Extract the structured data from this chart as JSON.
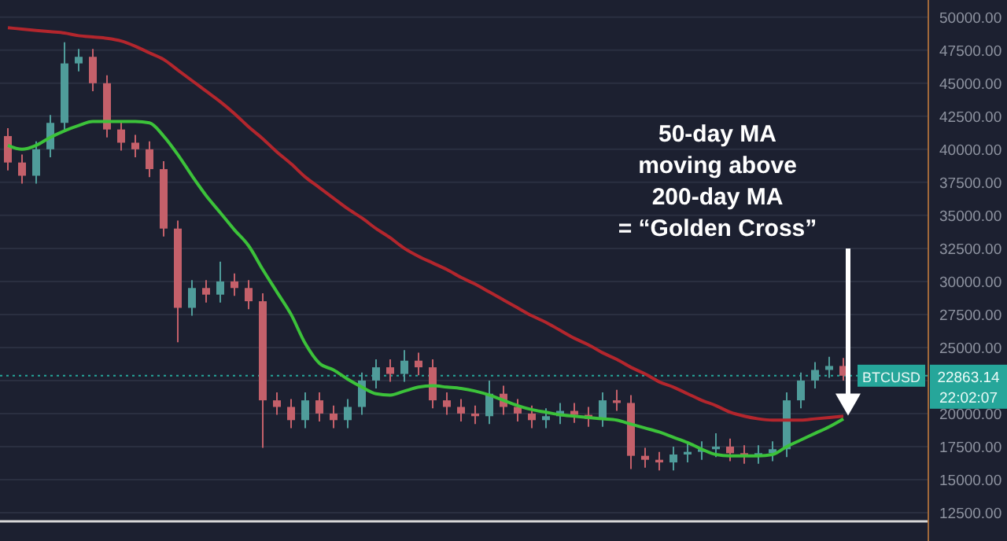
{
  "chart_data": {
    "type": "candlestick",
    "categories": [
      null,
      null,
      null,
      null,
      null,
      null,
      null,
      null,
      null,
      null,
      null,
      null,
      null,
      null,
      null,
      null,
      null,
      null,
      null,
      null,
      null,
      null,
      null,
      null,
      null,
      null,
      null,
      null,
      null,
      null,
      null,
      null,
      null,
      null,
      null,
      null,
      null,
      null,
      null,
      null,
      null,
      null,
      null,
      null,
      null,
      null,
      null,
      null,
      null,
      null,
      null,
      null,
      null,
      null,
      null,
      null,
      null,
      null,
      null,
      null
    ],
    "ohlc": [
      [
        41000,
        41600,
        38400,
        39000
      ],
      [
        39000,
        39600,
        37400,
        38000
      ],
      [
        38000,
        40600,
        37400,
        40000
      ],
      [
        40000,
        42600,
        39400,
        42000
      ],
      [
        42000,
        48100,
        41400,
        46500
      ],
      [
        46500,
        47600,
        45900,
        47000
      ],
      [
        47000,
        47600,
        44400,
        45000
      ],
      [
        45000,
        45600,
        40900,
        41500
      ],
      [
        41500,
        42100,
        39900,
        40500
      ],
      [
        40500,
        41100,
        39400,
        40000
      ],
      [
        40000,
        40600,
        37900,
        38500
      ],
      [
        38500,
        39100,
        33400,
        34000
      ],
      [
        34000,
        34600,
        25400,
        28000
      ],
      [
        28000,
        30100,
        27400,
        29500
      ],
      [
        29500,
        30100,
        28400,
        29000
      ],
      [
        29000,
        31500,
        28400,
        30000
      ],
      [
        30000,
        30600,
        28900,
        29500
      ],
      [
        29500,
        30100,
        27900,
        28500
      ],
      [
        28500,
        29100,
        17400,
        21000
      ],
      [
        21000,
        21600,
        19900,
        20500
      ],
      [
        20500,
        21100,
        18900,
        19500
      ],
      [
        19500,
        21600,
        18900,
        21000
      ],
      [
        21000,
        21600,
        19400,
        20000
      ],
      [
        20000,
        20600,
        18900,
        19500
      ],
      [
        19500,
        21100,
        18900,
        20500
      ],
      [
        20500,
        23100,
        19900,
        22500
      ],
      [
        22500,
        24100,
        21900,
        23500
      ],
      [
        23500,
        24100,
        22400,
        23000
      ],
      [
        23000,
        24800,
        22400,
        24000
      ],
      [
        24000,
        24600,
        22900,
        23500
      ],
      [
        23500,
        24100,
        20400,
        21000
      ],
      [
        21000,
        21600,
        19900,
        20500
      ],
      [
        20500,
        21100,
        19400,
        20000
      ],
      [
        20000,
        20600,
        19200,
        19800
      ],
      [
        19800,
        22500,
        19200,
        21500
      ],
      [
        21500,
        22100,
        19900,
        20500
      ],
      [
        20500,
        21100,
        19400,
        20000
      ],
      [
        20000,
        20600,
        18900,
        19500
      ],
      [
        19500,
        20400,
        18900,
        19800
      ],
      [
        19800,
        20800,
        19200,
        20200
      ],
      [
        20200,
        20800,
        19300,
        19900
      ],
      [
        19900,
        20500,
        19000,
        19600
      ],
      [
        19600,
        21600,
        19000,
        21000
      ],
      [
        21000,
        21800,
        20200,
        20800
      ],
      [
        20800,
        21400,
        15800,
        16800
      ],
      [
        16800,
        17400,
        15900,
        16500
      ],
      [
        16500,
        17100,
        15700,
        16300
      ],
      [
        16300,
        17500,
        15700,
        16900
      ],
      [
        16900,
        17700,
        16300,
        17100
      ],
      [
        17100,
        17900,
        16500,
        17300
      ],
      [
        17300,
        18500,
        16700,
        17500
      ],
      [
        17500,
        18100,
        16400,
        17000
      ],
      [
        17000,
        17600,
        16200,
        16800
      ],
      [
        16800,
        17600,
        16200,
        17000
      ],
      [
        17000,
        17900,
        16400,
        17300
      ],
      [
        17300,
        21600,
        16700,
        21000
      ],
      [
        21000,
        23100,
        20400,
        22500
      ],
      [
        22500,
        23900,
        21900,
        23300
      ],
      [
        23300,
        24300,
        22700,
        23600
      ],
      [
        23600,
        24200,
        22500,
        22863.14
      ]
    ],
    "series": [
      {
        "type": "line",
        "color": "#b3262d",
        "values": [
          49200,
          49100,
          49000,
          48900,
          48800,
          48600,
          48500,
          48400,
          48200,
          47800,
          47300,
          46800,
          46000,
          45200,
          44400,
          43600,
          42700,
          41700,
          40800,
          39800,
          38900,
          37900,
          37100,
          36300,
          35500,
          34800,
          34000,
          33300,
          32500,
          31900,
          31400,
          30900,
          30300,
          29800,
          29200,
          28600,
          28000,
          27400,
          26900,
          26300,
          25700,
          25200,
          24600,
          24100,
          23500,
          23000,
          22400,
          22000,
          21500,
          21000,
          20600,
          20100,
          19800,
          19600,
          19500,
          19500,
          19500,
          19600,
          19700,
          19800
        ]
      },
      {
        "type": "line",
        "color": "#3cc23a",
        "values": [
          40300,
          40000,
          40300,
          40900,
          41400,
          41800,
          42100,
          42100,
          42100,
          42100,
          42000,
          41000,
          39600,
          38000,
          36500,
          35200,
          33900,
          32700,
          30900,
          29200,
          27500,
          25300,
          23800,
          23300,
          22600,
          22000,
          21500,
          21400,
          21700,
          22000,
          22100,
          22000,
          21900,
          21700,
          21400,
          21000,
          20600,
          20300,
          20100,
          19900,
          19800,
          19700,
          19600,
          19500,
          19200,
          18900,
          18600,
          18200,
          17800,
          17300,
          16900,
          16800,
          16800,
          16800,
          16900,
          17500,
          18000,
          18500,
          19000,
          19600
        ]
      }
    ],
    "ylim": [
      11900,
      51300
    ],
    "yticks": [
      {
        "value": 12500,
        "label": "12500.00"
      },
      {
        "value": 15000,
        "label": "15000.00"
      },
      {
        "value": 17500,
        "label": "17500.00"
      },
      {
        "value": 20000,
        "label": "20000.00"
      },
      {
        "value": 22500,
        "label": null
      },
      {
        "value": 25000,
        "label": "25000.00"
      },
      {
        "value": 27500,
        "label": "27500.00"
      },
      {
        "value": 30000,
        "label": "30000.00"
      },
      {
        "value": 32500,
        "label": "32500.00"
      },
      {
        "value": 35000,
        "label": "35000.00"
      },
      {
        "value": 37500,
        "label": "37500.00"
      },
      {
        "value": 40000,
        "label": "40000.00"
      },
      {
        "value": 42500,
        "label": "42500.00"
      },
      {
        "value": 45000,
        "label": "45000.00"
      },
      {
        "value": 47500,
        "label": "47500.00"
      },
      {
        "value": 50000,
        "label": "50000.00"
      }
    ],
    "grid": "y",
    "tick_labels": "y",
    "ref_lines": [
      {
        "axis": "y",
        "value": 22863.14,
        "label": "BTCUSD",
        "color": "#26a69a",
        "line_style": "dotted"
      }
    ],
    "annotations": [
      "50-day MA\nmoving above\n200-day MA\n= “Golden Cross”",
      "22863.14\n22:02:07"
    ]
  }
}
